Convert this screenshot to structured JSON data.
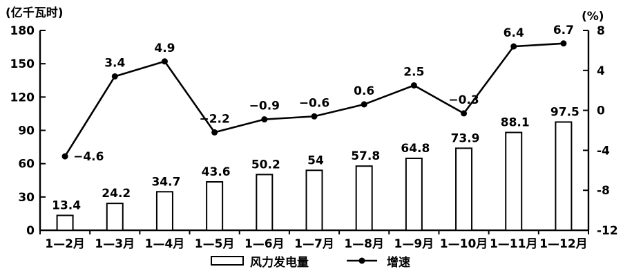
{
  "chart_data": {
    "type": "bar",
    "categories": [
      "1—2月",
      "1—3月",
      "1—4月",
      "1—5月",
      "1—6月",
      "1—7月",
      "1—8月",
      "1—9月",
      "1—10月",
      "1—11月",
      "1—12月"
    ],
    "series": [
      {
        "name": "风力发电量",
        "type": "bar",
        "axis": "left",
        "values": [
          13.4,
          24.2,
          34.7,
          43.6,
          50.2,
          54,
          57.8,
          64.8,
          73.9,
          88.1,
          97.5
        ]
      },
      {
        "name": "增速",
        "type": "line",
        "axis": "right",
        "values": [
          -4.6,
          3.4,
          4.9,
          -2.2,
          -0.9,
          -0.6,
          0.6,
          2.5,
          -0.3,
          6.4,
          6.7
        ]
      }
    ],
    "y_left": {
      "unit": "(亿千瓦时)",
      "ticks": [
        0,
        30,
        60,
        90,
        120,
        150,
        180
      ],
      "range": [
        0,
        180
      ]
    },
    "y_right": {
      "unit": "(%)",
      "ticks": [
        -12,
        -8,
        -4,
        0,
        4,
        8
      ],
      "range": [
        -12,
        8
      ]
    },
    "legend": {
      "position": "bottom"
    }
  }
}
